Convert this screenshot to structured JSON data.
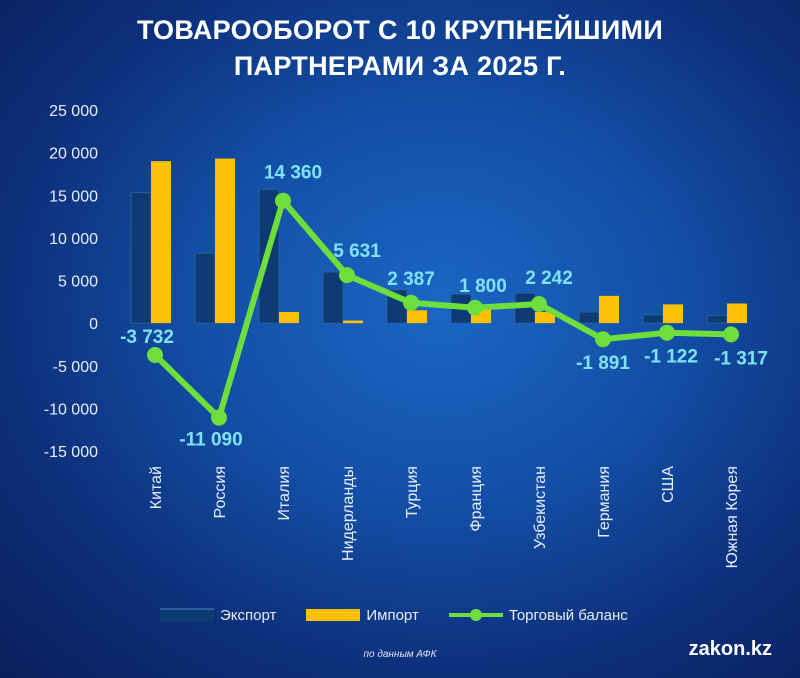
{
  "header": {
    "title_line1": "ТОВАРООБОРОТ С 10 КРУПНЕЙШИМИ",
    "title_line2": "ПАРТНЕРАМИ ЗА 2025 Г."
  },
  "chart_data": {
    "type": "bar",
    "title": "ТОВАРООБОРОТ С 10 КРУПНЕЙШИМИ ПАРТНЕРАМИ ЗА 2025 Г.",
    "categories": [
      "Китай",
      "Россия",
      "Италия",
      "Нидерланды",
      "Турция",
      "Франция",
      "Узбекистан",
      "Германия",
      "США",
      "Южная Корея"
    ],
    "series": [
      {
        "name": "Экспорт",
        "type": "bar",
        "values": [
          15300,
          8200,
          15700,
          6000,
          3900,
          3400,
          3500,
          1300,
          1000,
          900
        ]
      },
      {
        "name": "Импорт",
        "type": "bar",
        "values": [
          19000,
          19300,
          1300,
          300,
          1500,
          1600,
          1300,
          3200,
          2200,
          2300
        ]
      },
      {
        "name": "Торговый баланс",
        "type": "line",
        "values": [
          -3732,
          -11090,
          14360,
          5631,
          2387,
          1800,
          2242,
          -1891,
          -1122,
          -1317
        ]
      }
    ],
    "data_labels": [
      "-3 732",
      "-11 090",
      "14 360",
      "5 631",
      "2 387",
      "1 800",
      "2 242",
      "-1 891",
      "-1 122",
      "-1 317"
    ],
    "ylim": [
      -15000,
      25000
    ],
    "yticks": [
      25000,
      20000,
      15000,
      10000,
      5000,
      0,
      -5000,
      -10000,
      -15000
    ],
    "ytick_labels": [
      "25 000",
      "20 000",
      "15 000",
      "10 000",
      "5 000",
      "0",
      "-5 000",
      "-10 000",
      "-15 000"
    ],
    "grid": false,
    "legend": "bottom",
    "colors": {
      "export": "#0d3a72",
      "import": "#ffc107",
      "balance": "#6ede3c",
      "label": "#7fe3f5"
    }
  },
  "legend": {
    "export": "Экспорт",
    "import": "Импорт",
    "balance": "Торговый баланс"
  },
  "footer": {
    "source": "по данным АФК",
    "brand": "zakon.kz"
  }
}
